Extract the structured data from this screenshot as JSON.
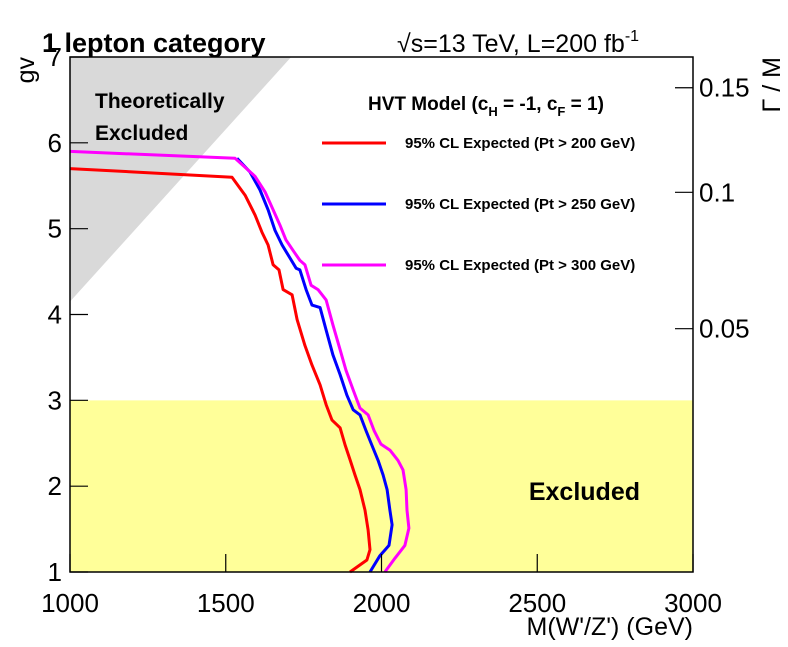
{
  "chart_data": {
    "type": "line",
    "title": "1 lepton category",
    "energy_label": "√s=13 TeV, L=200 fb",
    "energy_label_sup": "-1",
    "legend_title": [
      "HVT Model (c",
      "H",
      " = -1, c",
      "F",
      " = 1)"
    ],
    "x_label": "M(W'/Z') (GeV)",
    "y_label": "gv",
    "y2_label": "Γ / M",
    "xlim": [
      1000,
      3000
    ],
    "xticks": [
      1000,
      1500,
      2000,
      2500,
      3000
    ],
    "ylim": [
      1,
      7
    ],
    "yticks": [
      1,
      2,
      3,
      4,
      5,
      6,
      7
    ],
    "y2lim": [
      0.0034,
      0.1666
    ],
    "y2_scale": "sqrt",
    "y2ticks": [
      0.05,
      0.1,
      0.15
    ],
    "legend": "top-right",
    "regions": [
      {
        "labels": [
          "Theoretically",
          "Excluded"
        ],
        "color": "#d9d9d9",
        "x": [
          1000,
          1000,
          1710
        ],
        "y": [
          4.15,
          7,
          7
        ]
      },
      {
        "labels": [
          "Excluded"
        ],
        "color": "#ffff99",
        "x": [
          1000,
          3000,
          3000,
          1000
        ],
        "y": [
          1,
          1,
          3,
          3
        ]
      }
    ],
    "series": [
      {
        "name": "95% CL Expected (Pt > 200 GeV)",
        "color": "#ff0000",
        "x": [
          1000,
          1520,
          1562,
          1594,
          1616,
          1636,
          1652,
          1671,
          1684,
          1713,
          1729,
          1754,
          1777,
          1803,
          1822,
          1841,
          1867,
          1883,
          1899,
          1915,
          1931,
          1947,
          1957,
          1963,
          1953,
          1899
        ],
        "values": [
          5.7,
          5.6,
          5.39,
          5.16,
          4.96,
          4.81,
          4.58,
          4.52,
          4.29,
          4.23,
          3.94,
          3.64,
          3.41,
          3.18,
          2.95,
          2.77,
          2.68,
          2.48,
          2.31,
          2.13,
          1.96,
          1.72,
          1.49,
          1.26,
          1.14,
          1.0
        ]
      },
      {
        "name": "95% CL Expected (Pt > 250 GeV)",
        "color": "#0000ff",
        "x": [
          1536,
          1578,
          1610,
          1636,
          1658,
          1681,
          1706,
          1726,
          1738,
          1758,
          1777,
          1803,
          1822,
          1844,
          1867,
          1889,
          1909,
          1931,
          1950,
          1969,
          1989,
          2005,
          2018,
          2027,
          2034,
          2024,
          1995,
          1963
        ],
        "values": [
          5.82,
          5.66,
          5.45,
          5.22,
          4.98,
          4.81,
          4.66,
          4.54,
          4.52,
          4.29,
          4.11,
          4.08,
          3.82,
          3.53,
          3.3,
          3.06,
          2.89,
          2.83,
          2.65,
          2.48,
          2.3,
          2.13,
          1.96,
          1.72,
          1.55,
          1.31,
          1.19,
          1.0
        ]
      },
      {
        "name": "95% CL Expected (Pt > 300 GeV)",
        "color": "#ff00ff",
        "x": [
          1000,
          1530,
          1594,
          1626,
          1652,
          1674,
          1693,
          1719,
          1738,
          1754,
          1774,
          1796,
          1822,
          1844,
          1867,
          1886,
          1909,
          1931,
          1957,
          1976,
          1998,
          2027,
          2053,
          2069,
          2079,
          2082,
          2088,
          2075,
          2043,
          2011
        ],
        "values": [
          5.9,
          5.82,
          5.61,
          5.43,
          5.22,
          5.04,
          4.87,
          4.73,
          4.63,
          4.58,
          4.34,
          4.29,
          4.17,
          3.88,
          3.59,
          3.35,
          3.12,
          2.91,
          2.83,
          2.65,
          2.49,
          2.42,
          2.3,
          2.19,
          1.96,
          1.72,
          1.51,
          1.31,
          1.16,
          1.0
        ]
      }
    ]
  }
}
